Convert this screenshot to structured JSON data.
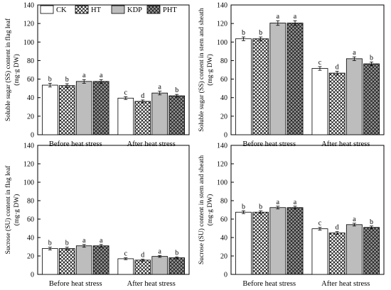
{
  "chart_data": [
    {
      "type": "bar",
      "ylabel": "Soluble sugar (SS) content in flag leaf",
      "ylabel_unit": "(mg·g DW)",
      "categories": [
        "Before heat stress",
        "After heat stress"
      ],
      "ylim": [
        0,
        140
      ],
      "yticks": [
        "0",
        "20",
        "40",
        "60",
        "80",
        "100",
        "120",
        "140"
      ],
      "series": [
        {
          "name": "CK",
          "values": [
            53.5,
            39.5
          ],
          "errors": [
            2.0,
            1.5
          ],
          "sig": [
            "b",
            "c"
          ]
        },
        {
          "name": "HT",
          "values": [
            53.0,
            36.0
          ],
          "errors": [
            2.0,
            1.5
          ],
          "sig": [
            "b",
            "d"
          ]
        },
        {
          "name": "KDP",
          "values": [
            57.5,
            45.0
          ],
          "errors": [
            2.0,
            2.0
          ],
          "sig": [
            "a",
            "a"
          ]
        },
        {
          "name": "PHT",
          "values": [
            57.5,
            42.0
          ],
          "errors": [
            2.0,
            1.5
          ],
          "sig": [
            "a",
            "b"
          ]
        }
      ]
    },
    {
      "type": "bar",
      "ylabel": "Soluble sugar (SS) content in stem and sheath",
      "ylabel_unit": "(mg·g DW)",
      "categories": [
        "Before heat stress",
        "After heat stress"
      ],
      "ylim": [
        0,
        140
      ],
      "yticks": [
        "0",
        "20",
        "40",
        "60",
        "80",
        "100",
        "120",
        "140"
      ],
      "series": [
        {
          "name": "CK",
          "values": [
            103.5,
            71.5
          ],
          "errors": [
            2.0,
            2.0
          ],
          "sig": [
            "b",
            "c"
          ]
        },
        {
          "name": "HT",
          "values": [
            103.5,
            66.5
          ],
          "errors": [
            2.0,
            2.0
          ],
          "sig": [
            "b",
            "d"
          ]
        },
        {
          "name": "KDP",
          "values": [
            120.5,
            82.0
          ],
          "errors": [
            2.5,
            2.0
          ],
          "sig": [
            "a",
            "a"
          ]
        },
        {
          "name": "PHT",
          "values": [
            120.5,
            76.5
          ],
          "errors": [
            2.5,
            2.0
          ],
          "sig": [
            "a",
            "b"
          ]
        }
      ]
    },
    {
      "type": "bar",
      "ylabel": "Sucrose (SU) content in flag leaf",
      "ylabel_unit": "(mg·g DW)",
      "categories": [
        "Before heat stress",
        "After heat stress"
      ],
      "ylim": [
        0,
        140
      ],
      "yticks": [
        "0",
        "20",
        "40",
        "60",
        "80",
        "100",
        "120",
        "140"
      ],
      "series": [
        {
          "name": "CK",
          "values": [
            28.0,
            17.0
          ],
          "errors": [
            1.5,
            1.0
          ],
          "sig": [
            "b",
            "c"
          ]
        },
        {
          "name": "HT",
          "values": [
            28.0,
            15.5
          ],
          "errors": [
            1.5,
            1.0
          ],
          "sig": [
            "b",
            "d"
          ]
        },
        {
          "name": "KDP",
          "values": [
            31.0,
            19.5
          ],
          "errors": [
            1.5,
            1.0
          ],
          "sig": [
            "a",
            "a"
          ]
        },
        {
          "name": "PHT",
          "values": [
            31.0,
            18.0
          ],
          "errors": [
            1.5,
            1.0
          ],
          "sig": [
            "a",
            "b"
          ]
        }
      ]
    },
    {
      "type": "bar",
      "ylabel": "Sucrose (SU) content in stem and sheath",
      "ylabel_unit": "(mg·g DW)",
      "categories": [
        "Before heat stress",
        "After heat stress"
      ],
      "ylim": [
        0,
        140
      ],
      "yticks": [
        "0",
        "20",
        "40",
        "60",
        "80",
        "100",
        "120",
        "140"
      ],
      "series": [
        {
          "name": "CK",
          "values": [
            67.5,
            49.5
          ],
          "errors": [
            1.5,
            1.5
          ],
          "sig": [
            "b",
            "c"
          ]
        },
        {
          "name": "HT",
          "values": [
            67.5,
            45.0
          ],
          "errors": [
            1.5,
            1.5
          ],
          "sig": [
            "b",
            "d"
          ]
        },
        {
          "name": "KDP",
          "values": [
            72.5,
            54.0
          ],
          "errors": [
            1.5,
            1.5
          ],
          "sig": [
            "a",
            "a"
          ]
        },
        {
          "name": "PHT",
          "values": [
            72.5,
            51.0
          ],
          "errors": [
            1.5,
            1.5
          ],
          "sig": [
            "a",
            "b"
          ]
        }
      ]
    }
  ],
  "legend": {
    "items": [
      {
        "label": "CK",
        "fill": "white"
      },
      {
        "label": "HT",
        "fill": "crosshatch"
      },
      {
        "label": "KDP",
        "fill": "gray"
      },
      {
        "label": "PHT",
        "fill": "dark-crosshatch"
      }
    ]
  },
  "colors": {
    "axis": "#000000",
    "kdp_fill": "#bdbdbd",
    "ht_hatch": "#000000",
    "pht_bg": "#9a9a9a"
  }
}
